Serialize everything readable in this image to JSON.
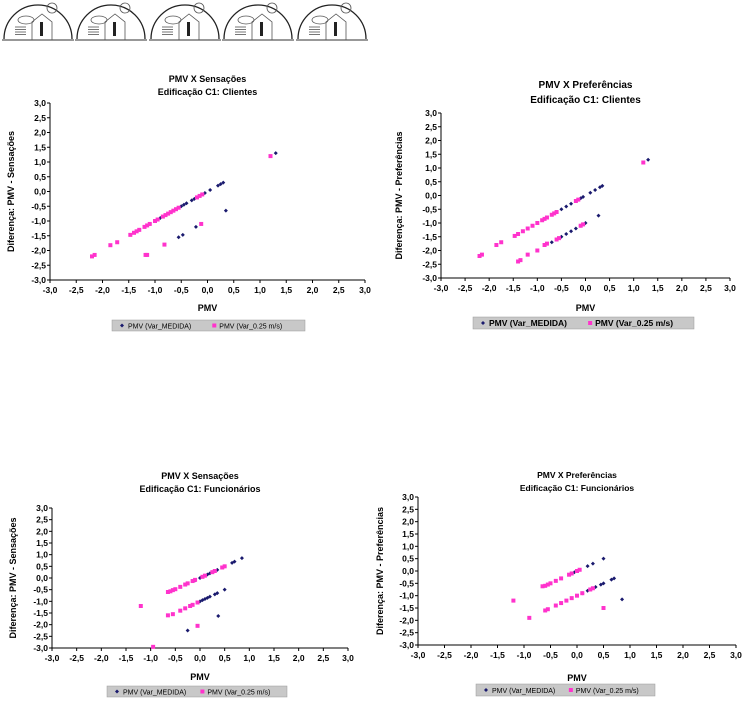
{
  "header": {
    "icons": [
      "house-climate-icon",
      "house-climate-icon",
      "house-climate-icon",
      "house-climate-icon",
      "house-climate-icon"
    ]
  },
  "colors": {
    "medida": "#1a1a6e",
    "var025": "#ff33cc",
    "legend_bg": "#c8c8c8"
  },
  "chart_data": [
    {
      "type": "scatter",
      "title": "PMV X Sensações",
      "subtitle": "Edificação C1: Clientes",
      "xlabel": "PMV",
      "ylabel": "Diferença: PMV - Sensações",
      "xlim": [
        -3,
        3
      ],
      "ylim": [
        -3,
        3
      ],
      "xticks": [
        "-3,0",
        "-2,5",
        "-2,0",
        "-1,5",
        "-1,0",
        "-0,5",
        "0,0",
        "0,5",
        "1,0",
        "1,5",
        "2,0",
        "2,5",
        "3,0"
      ],
      "yticks": [
        "3,0",
        "2,5",
        "2,0",
        "1,5",
        "1,0",
        "0,5",
        "0,0",
        "-0,5",
        "-1,0",
        "-1,5",
        "-2,0",
        "-2,5",
        "-3,0"
      ],
      "legend_position": "bottom",
      "series": [
        {
          "name": "PMV (Var_MEDIDA)",
          "points": [
            [
              -1.3,
              -1.3
            ],
            [
              -1.1,
              -1.1
            ],
            [
              -1.0,
              -1.0
            ],
            [
              -0.9,
              -0.9
            ],
            [
              -0.5,
              -0.5
            ],
            [
              -0.45,
              -0.45
            ],
            [
              -0.4,
              -0.4
            ],
            [
              -0.3,
              -0.3
            ],
            [
              -0.25,
              -0.25
            ],
            [
              -0.2,
              -0.2
            ],
            [
              -0.05,
              -0.05
            ],
            [
              0.05,
              0.05
            ],
            [
              0.2,
              0.2
            ],
            [
              0.25,
              0.25
            ],
            [
              0.3,
              0.3
            ],
            [
              0.35,
              -0.65
            ],
            [
              -0.55,
              -1.55
            ],
            [
              -0.47,
              -1.47
            ],
            [
              -0.22,
              -1.2
            ],
            [
              1.3,
              1.3
            ]
          ]
        },
        {
          "name": "PMV (Var_0.25 m/s)",
          "points": [
            [
              -2.2,
              -2.2
            ],
            [
              -2.15,
              -2.15
            ],
            [
              -1.85,
              -1.82
            ],
            [
              -1.72,
              -1.72
            ],
            [
              -1.47,
              -1.47
            ],
            [
              -1.4,
              -1.4
            ],
            [
              -1.35,
              -1.35
            ],
            [
              -1.3,
              -1.3
            ],
            [
              -1.2,
              -1.2
            ],
            [
              -1.15,
              -1.15
            ],
            [
              -1.1,
              -1.1
            ],
            [
              -1.0,
              -1.0
            ],
            [
              -0.95,
              -0.95
            ],
            [
              -0.85,
              -0.85
            ],
            [
              -0.8,
              -0.8
            ],
            [
              -0.75,
              -0.75
            ],
            [
              -0.7,
              -0.7
            ],
            [
              -0.65,
              -0.65
            ],
            [
              -0.6,
              -0.6
            ],
            [
              -0.55,
              -0.55
            ],
            [
              -0.2,
              -0.2
            ],
            [
              -0.15,
              -0.15
            ],
            [
              -0.1,
              -0.1
            ],
            [
              -1.18,
              -2.15
            ],
            [
              -1.15,
              -2.15
            ],
            [
              -0.82,
              -1.8
            ],
            [
              -0.12,
              -1.1
            ],
            [
              1.2,
              1.2
            ]
          ]
        }
      ]
    },
    {
      "type": "scatter",
      "title": "PMV X Preferências",
      "subtitle": "Edificação C1: Clientes",
      "xlabel": "PMV",
      "ylabel": "Diferença: PMV - Preferências",
      "xlim": [
        -3,
        3
      ],
      "ylim": [
        -3,
        3
      ],
      "xticks": [
        "-3,0",
        "-2,5",
        "-2,0",
        "-1,5",
        "-1,0",
        "-0,5",
        "0,0",
        "0,5",
        "1,0",
        "1,5",
        "2,0",
        "2,5",
        "3,0"
      ],
      "yticks": [
        "3,0",
        "2,5",
        "2,0",
        "1,5",
        "1,0",
        "0,5",
        "0,0",
        "-0,5",
        "-1,0",
        "-1,5",
        "-2,0",
        "-2,5",
        "-3,0"
      ],
      "legend_position": "bottom",
      "series": [
        {
          "name": "PMV (Var_MEDIDA)",
          "points": [
            [
              -0.5,
              -0.5
            ],
            [
              -0.4,
              -0.4
            ],
            [
              -0.3,
              -0.3
            ],
            [
              -0.1,
              -0.1
            ],
            [
              -0.05,
              -0.05
            ],
            [
              0.1,
              0.1
            ],
            [
              0.2,
              0.2
            ],
            [
              0.3,
              0.3
            ],
            [
              0.35,
              0.35
            ],
            [
              1.3,
              1.3
            ],
            [
              -0.7,
              -1.7
            ],
            [
              -0.5,
              -1.5
            ],
            [
              -0.4,
              -1.4
            ],
            [
              -0.3,
              -1.3
            ],
            [
              -0.2,
              -1.2
            ],
            [
              -0.1,
              -1.1
            ],
            [
              -0.05,
              -1.05
            ],
            [
              0.0,
              -1.0
            ],
            [
              0.27,
              -0.73
            ]
          ]
        },
        {
          "name": "PMV (Var_0.25 m/s)",
          "points": [
            [
              -2.2,
              -2.2
            ],
            [
              -2.15,
              -2.15
            ],
            [
              -1.85,
              -1.8
            ],
            [
              -1.75,
              -1.7
            ],
            [
              -1.47,
              -1.47
            ],
            [
              -1.4,
              -1.4
            ],
            [
              -1.3,
              -1.3
            ],
            [
              -1.2,
              -1.2
            ],
            [
              -1.1,
              -1.1
            ],
            [
              -1.0,
              -1.0
            ],
            [
              -0.9,
              -0.9
            ],
            [
              -0.85,
              -0.85
            ],
            [
              -0.8,
              -0.8
            ],
            [
              -0.7,
              -0.7
            ],
            [
              -0.65,
              -0.65
            ],
            [
              -0.6,
              -0.6
            ],
            [
              -0.2,
              -0.2
            ],
            [
              -0.15,
              -0.15
            ],
            [
              -1.4,
              -2.4
            ],
            [
              -1.35,
              -2.35
            ],
            [
              -1.2,
              -2.15
            ],
            [
              -1.0,
              -2.0
            ],
            [
              -0.85,
              -1.8
            ],
            [
              -0.8,
              -1.75
            ],
            [
              -0.6,
              -1.6
            ],
            [
              -0.55,
              -1.55
            ],
            [
              -0.1,
              -1.1
            ],
            [
              -0.05,
              -1.05
            ],
            [
              1.2,
              1.2
            ]
          ]
        }
      ]
    },
    {
      "type": "scatter",
      "title": "PMV X Sensações",
      "subtitle": "Edificação C1: Funcionários",
      "xlabel": "PMV",
      "ylabel": "Diferença: PMV - Sensações",
      "xlim": [
        -3,
        3
      ],
      "ylim": [
        -3,
        3
      ],
      "xticks": [
        "-3,0",
        "-2,5",
        "-2,0",
        "-1,5",
        "-1,0",
        "-0,5",
        "0,0",
        "0,5",
        "1,0",
        "1,5",
        "2,0",
        "2,5",
        "3,0"
      ],
      "yticks": [
        "3,0",
        "2,5",
        "2,0",
        "1,5",
        "1,0",
        "0,5",
        "0,0",
        "-0,5",
        "-1,0",
        "-1,5",
        "-2,0",
        "-2,5",
        "-3,0"
      ],
      "legend_position": "bottom",
      "series": [
        {
          "name": "PMV (Var_MEDIDA)",
          "points": [
            [
              -0.1,
              -0.1
            ],
            [
              0.0,
              0.0
            ],
            [
              0.1,
              0.1
            ],
            [
              0.15,
              0.15
            ],
            [
              0.2,
              0.2
            ],
            [
              0.35,
              0.35
            ],
            [
              0.5,
              0.5
            ],
            [
              0.65,
              0.65
            ],
            [
              0.7,
              0.7
            ],
            [
              0.85,
              0.85
            ],
            [
              0.0,
              -1.0
            ],
            [
              0.05,
              -0.95
            ],
            [
              0.1,
              -0.9
            ],
            [
              0.15,
              -0.85
            ],
            [
              0.2,
              -0.8
            ],
            [
              0.3,
              -0.7
            ],
            [
              0.35,
              -0.65
            ],
            [
              0.5,
              -0.5
            ],
            [
              0.37,
              -1.63
            ],
            [
              -0.25,
              -2.25
            ]
          ]
        },
        {
          "name": "PMV (Var_0.25 m/s)",
          "points": [
            [
              -0.65,
              -0.6
            ],
            [
              -0.6,
              -0.57
            ],
            [
              -0.55,
              -0.52
            ],
            [
              -0.5,
              -0.48
            ],
            [
              -0.4,
              -0.38
            ],
            [
              -0.3,
              -0.28
            ],
            [
              -0.25,
              -0.23
            ],
            [
              -0.15,
              -0.13
            ],
            [
              -0.1,
              -0.08
            ],
            [
              0.05,
              0.05
            ],
            [
              0.1,
              0.1
            ],
            [
              0.25,
              0.25
            ],
            [
              0.3,
              0.3
            ],
            [
              0.45,
              0.45
            ],
            [
              0.5,
              0.5
            ],
            [
              -0.65,
              -1.6
            ],
            [
              -0.55,
              -1.55
            ],
            [
              -0.4,
              -1.4
            ],
            [
              -0.3,
              -1.3
            ],
            [
              -0.2,
              -1.2
            ],
            [
              -0.15,
              -1.15
            ],
            [
              -0.05,
              -1.05
            ],
            [
              -1.2,
              -1.2
            ],
            [
              -0.95,
              -2.95
            ],
            [
              -0.05,
              -2.05
            ]
          ]
        }
      ]
    },
    {
      "type": "scatter",
      "title": "PMV X Preferências",
      "subtitle": "Edificação C1: Funcionários",
      "xlabel": "PMV",
      "ylabel": "Diferença: PMV - Preferências",
      "xlim": [
        -3,
        3
      ],
      "ylim": [
        -3,
        3
      ],
      "xticks": [
        "-3,0",
        "-2,5",
        "-2,0",
        "-1,5",
        "-1,0",
        "-0,5",
        "0,0",
        "0,5",
        "1,0",
        "1,5",
        "2,0",
        "2,5",
        "3,0"
      ],
      "yticks": [
        "3,0",
        "2,5",
        "2,0",
        "1,5",
        "1,0",
        "0,5",
        "0,0",
        "-0,5",
        "-1,0",
        "-1,5",
        "-2,0",
        "-2,5",
        "-3,0"
      ],
      "legend_position": "bottom",
      "series": [
        {
          "name": "PMV (Var_MEDIDA)",
          "points": [
            [
              -0.1,
              -0.1
            ],
            [
              -0.05,
              -0.05
            ],
            [
              0.0,
              0.0
            ],
            [
              0.2,
              0.2
            ],
            [
              0.3,
              0.3
            ],
            [
              0.5,
              0.5
            ],
            [
              0.1,
              -0.9
            ],
            [
              0.2,
              -0.8
            ],
            [
              0.25,
              -0.75
            ],
            [
              0.35,
              -0.65
            ],
            [
              0.45,
              -0.55
            ],
            [
              0.5,
              -0.5
            ],
            [
              0.65,
              -0.35
            ],
            [
              0.7,
              -0.3
            ],
            [
              0.85,
              -1.15
            ]
          ]
        },
        {
          "name": "PMV (Var_0.25 m/s)",
          "points": [
            [
              -0.65,
              -0.62
            ],
            [
              -0.6,
              -0.6
            ],
            [
              -0.55,
              -0.55
            ],
            [
              -0.5,
              -0.5
            ],
            [
              -0.4,
              -0.4
            ],
            [
              -0.3,
              -0.3
            ],
            [
              -0.15,
              -0.15
            ],
            [
              -0.1,
              -0.1
            ],
            [
              0.0,
              0.0
            ],
            [
              0.05,
              0.05
            ],
            [
              -0.6,
              -1.6
            ],
            [
              -0.55,
              -1.55
            ],
            [
              -0.4,
              -1.4
            ],
            [
              -0.3,
              -1.3
            ],
            [
              -0.2,
              -1.2
            ],
            [
              -0.1,
              -1.1
            ],
            [
              0.0,
              -1.0
            ],
            [
              0.1,
              -0.9
            ],
            [
              0.25,
              -0.75
            ],
            [
              0.3,
              -0.7
            ],
            [
              -1.2,
              -1.2
            ],
            [
              -0.9,
              -1.9
            ],
            [
              0.5,
              -1.5
            ]
          ]
        }
      ]
    }
  ]
}
